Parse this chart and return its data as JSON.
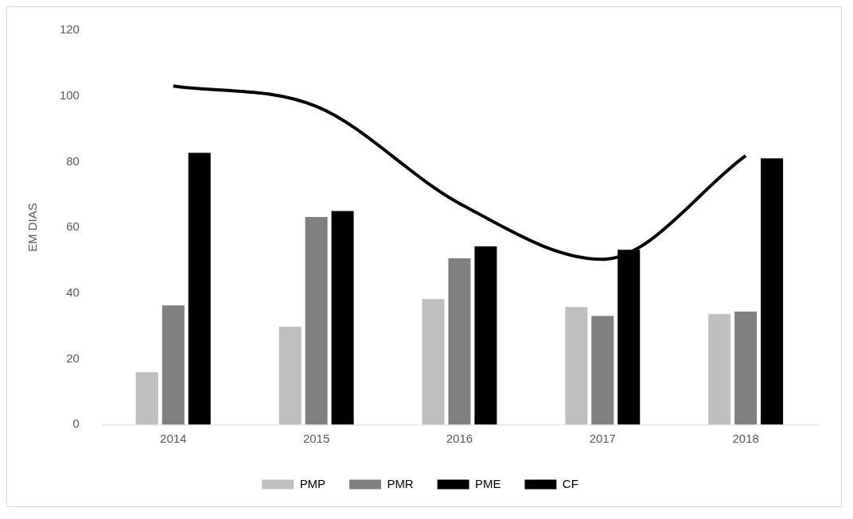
{
  "chart_data": {
    "type": "bar",
    "ylabel": "EM DIAS",
    "categories": [
      "2014",
      "2015",
      "2016",
      "2017",
      "2018"
    ],
    "series": [
      {
        "name": "PMP",
        "color": "#bfbfbf",
        "values": [
          16,
          29.8,
          38.2,
          35.8,
          33.6
        ]
      },
      {
        "name": "PMR",
        "color": "#808080",
        "values": [
          36.3,
          63.2,
          50.6,
          33.1,
          34.4
        ]
      },
      {
        "name": "PME",
        "color": "#000000",
        "values": [
          82.7,
          65,
          54.2,
          53.2,
          81
        ]
      },
      {
        "name": "CF",
        "type": "line",
        "color": "#000000",
        "values": [
          103,
          96.8,
          67.3,
          50.3,
          81.8
        ]
      }
    ],
    "ylim": [
      0,
      120
    ],
    "yticks": [
      0,
      20,
      40,
      60,
      80,
      100,
      120
    ],
    "grid": false,
    "legend": "bottom"
  }
}
